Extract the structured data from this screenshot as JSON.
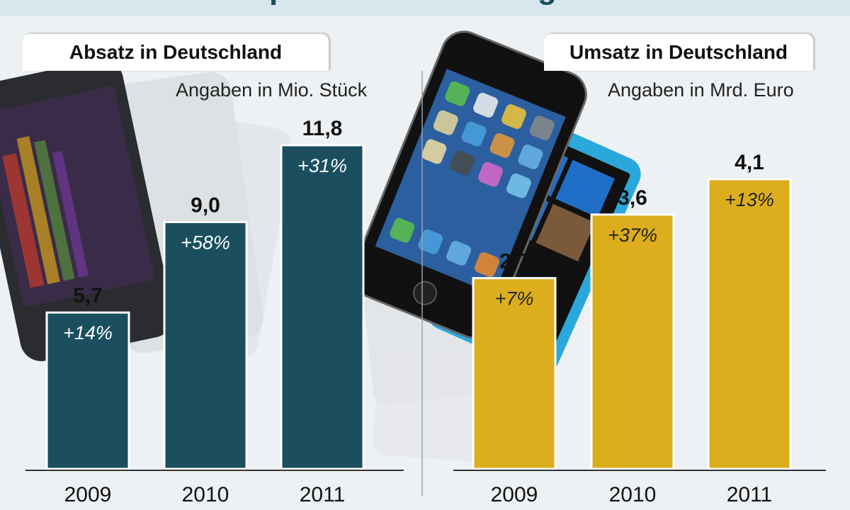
{
  "page": {
    "title": "Smartphone-Absatz steigt rasant"
  },
  "colors": {
    "absatz_bar": "#1b4f5f",
    "umsatz_bar": "#dcae1e",
    "background": "#eef1f3"
  },
  "chart_data": [
    {
      "type": "bar",
      "title": "Absatz in Deutschland",
      "subtitle": "Angaben in Mio. Stück",
      "categories": [
        "2009",
        "2010",
        "2011"
      ],
      "values": [
        5.7,
        9.0,
        11.8
      ],
      "value_labels": [
        "5,7",
        "9,0",
        "11,8"
      ],
      "growth_labels": [
        "+14%",
        "+58%",
        "+31%"
      ],
      "ylim": [
        0,
        13.3
      ],
      "color": "#1b4f5f"
    },
    {
      "type": "bar",
      "title": "Umsatz in Deutschland",
      "subtitle": "Angaben in Mrd. Euro",
      "categories": [
        "2009",
        "2010",
        "2011"
      ],
      "values": [
        2.7,
        3.6,
        4.1
      ],
      "value_labels": [
        "2,7",
        "3,6",
        "4,1"
      ],
      "growth_labels": [
        "+7%",
        "+37%",
        "+13%"
      ],
      "ylim": [
        0,
        4.4
      ],
      "color": "#dcae1e"
    }
  ]
}
